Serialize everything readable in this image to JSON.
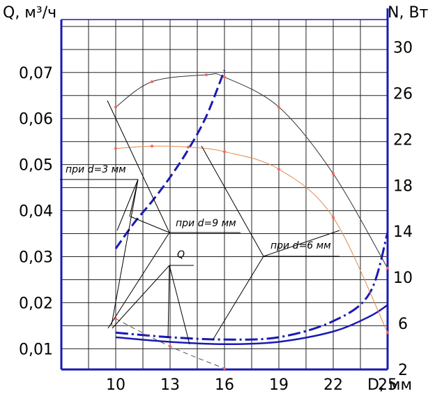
{
  "chart_data": {
    "type": "line",
    "title": "",
    "xlabel": "D, мм",
    "ylabel_left": "Q, м³/ч",
    "ylabel_right": "N, Вт",
    "x_ticks": [
      "10",
      "13",
      "16",
      "19",
      "22",
      "25"
    ],
    "x_range": [
      7,
      25
    ],
    "y_left_ticks": [
      "0,01",
      "0,02",
      "0,03",
      "0,04",
      "0,05",
      "0,06",
      "0,07"
    ],
    "y_left_range": [
      0.0055,
      0.0815
    ],
    "y_right_ticks": [
      "2",
      "6",
      "10",
      "14",
      "18",
      "22",
      "26",
      "30"
    ],
    "y_right_range": [
      2,
      32.4
    ],
    "grid": true,
    "series": [
      {
        "name": "при d=3 мм",
        "axis": "right",
        "style": "dashed",
        "color": "#1a1ab4",
        "x": [
          10,
          11,
          12,
          13,
          14,
          15,
          16
        ],
        "y": [
          12.5,
          14.7,
          16.6,
          18.7,
          21.1,
          24.0,
          28.0
        ]
      },
      {
        "name": "при d=6 мм",
        "axis": "right",
        "style": "dashdot",
        "color": "#1a1ab4",
        "x": [
          10,
          13,
          16,
          19,
          22,
          24,
          25
        ],
        "y": [
          5.2,
          4.8,
          4.6,
          4.8,
          6.2,
          8.6,
          13.9
        ]
      },
      {
        "name": "при d=9 мм",
        "axis": "right",
        "style": "solid",
        "color": "#1a1ab4",
        "x": [
          10,
          13,
          16,
          19,
          22,
          24,
          25
        ],
        "y": [
          4.8,
          4.4,
          4.2,
          4.4,
          5.3,
          6.6,
          7.6
        ]
      },
      {
        "name": "",
        "axis": "left",
        "style": "thin",
        "color": "#333333",
        "x": [
          10,
          12,
          15,
          16,
          19,
          22,
          25
        ],
        "y": [
          0.0625,
          0.068,
          0.0695,
          0.069,
          0.0625,
          0.048,
          0.0275
        ]
      },
      {
        "name": "",
        "axis": "left",
        "style": "thin",
        "color": "#e08a4a",
        "x": [
          10,
          12,
          14,
          16,
          19,
          22,
          25
        ],
        "y": [
          0.0535,
          0.054,
          0.0538,
          0.0528,
          0.049,
          0.0385,
          0.0135
        ]
      },
      {
        "name": "",
        "axis": "left",
        "style": "thin-dashed",
        "color": "#555555",
        "x": [
          10,
          13,
          16
        ],
        "y": [
          0.0165,
          0.0105,
          0.0057
        ]
      }
    ],
    "annotations": [
      "при d=3 мм",
      "при d=9 мм",
      "при d=6 мм",
      "Q"
    ]
  }
}
